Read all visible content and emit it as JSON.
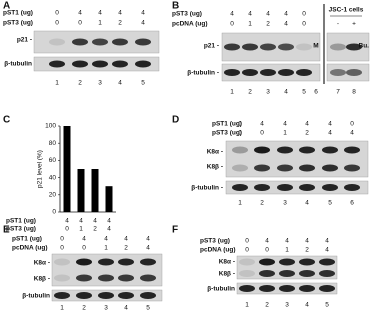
{
  "panels": [
    {
      "letter": "A",
      "rows": [
        {
          "label": "pST1 (ug)",
          "values": [
            0,
            4,
            4,
            4,
            4
          ]
        },
        {
          "label": "pST3 (ug)",
          "values": [
            0,
            0,
            1,
            2,
            4
          ]
        }
      ],
      "blots": [
        "p21 -",
        "β-tubulin"
      ],
      "lanes": [
        1,
        2,
        3,
        4,
        5
      ]
    },
    {
      "letter": "B",
      "rows": [
        {
          "label": "pST3 (ug)",
          "values": [
            4,
            4,
            4,
            4,
            0
          ]
        },
        {
          "label": "pcDNA (ug)",
          "values": [
            0,
            1,
            2,
            4,
            0
          ]
        }
      ],
      "blots": [
        "p21 -",
        "β-tubulin -"
      ],
      "marker": "M",
      "group": "JSC-1 cells",
      "group_cols": [
        "-",
        "+"
      ],
      "note": "Bu.",
      "lanes": [
        1,
        2,
        3,
        4,
        5,
        6,
        7,
        8
      ]
    },
    {
      "letter": "D",
      "rows": [
        {
          "label": "pST1 (ug)",
          "values": [
            0,
            4,
            4,
            4,
            4,
            0
          ]
        },
        {
          "label": "pST3 (ug)",
          "values": [
            0,
            0,
            1,
            2,
            4,
            4
          ]
        }
      ],
      "blots": [
        "K8α -",
        "K8β -",
        "β-tubulin -"
      ],
      "lanes": [
        1,
        2,
        3,
        4,
        5,
        6
      ]
    },
    {
      "letter": "E",
      "rows": [
        {
          "label": "pST1 (ug)",
          "values": [
            0,
            4,
            4,
            4,
            4
          ]
        },
        {
          "label": "pcDNA (ug)",
          "values": [
            0,
            0,
            1,
            2,
            4
          ]
        }
      ],
      "blots": [
        "K8α -",
        "K8β -",
        "β-tubulin"
      ],
      "lanes": [
        1,
        2,
        3,
        4,
        5
      ]
    },
    {
      "letter": "F",
      "rows": [
        {
          "label": "pST3 (ug)",
          "values": [
            0,
            4,
            4,
            4,
            4
          ]
        },
        {
          "label": "pcDNA (ug)",
          "values": [
            0,
            0,
            1,
            2,
            4
          ]
        }
      ],
      "blots": [
        "K8α -",
        "K8β -",
        "β-tubulin"
      ],
      "lanes": [
        1,
        2,
        3,
        4,
        5
      ]
    }
  ],
  "chart_data": {
    "type": "bar",
    "letter": "C",
    "y_label": "p21 level (%)",
    "category_rows": [
      {
        "label": "pST1 (ug)",
        "values": [
          4,
          4,
          4,
          4
        ]
      },
      {
        "label": "pST3 (ug)",
        "values": [
          0,
          1,
          2,
          4
        ]
      }
    ],
    "values": [
      100,
      50,
      50,
      30
    ],
    "color": "#000000",
    "ylim": [
      0,
      100
    ],
    "yticks": [
      0,
      20,
      40,
      60,
      80,
      100
    ]
  }
}
